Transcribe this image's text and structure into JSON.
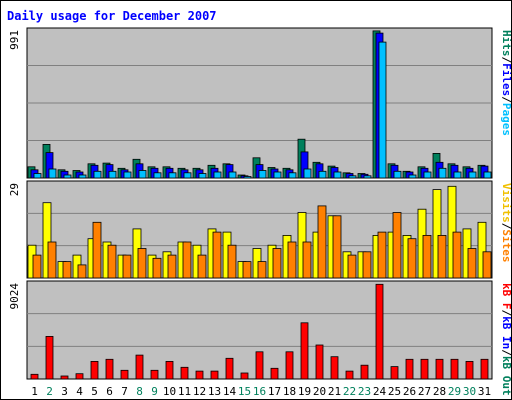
{
  "chart_data": {
    "type": "bar",
    "title": "Daily usage for December 2007",
    "categories": [
      "1",
      "2",
      "3",
      "4",
      "5",
      "6",
      "7",
      "8",
      "9",
      "10",
      "11",
      "12",
      "13",
      "14",
      "15",
      "16",
      "17",
      "18",
      "19",
      "20",
      "21",
      "22",
      "23",
      "24",
      "25",
      "26",
      "27",
      "28",
      "29",
      "30",
      "31"
    ],
    "weekend_days": [
      "2",
      "8",
      "9",
      "15",
      "16",
      "22",
      "23",
      "29",
      "30"
    ],
    "panels": [
      {
        "id": "hits-files-pages",
        "max_label": "991",
        "ylim": [
          0,
          991
        ],
        "right_labels": [
          {
            "text": "Hits",
            "color": "#00805c"
          },
          {
            "text": "/",
            "color": "#000000"
          },
          {
            "text": "Files",
            "color": "#0000ff"
          },
          {
            "text": "/",
            "color": "#000000"
          },
          {
            "text": "Pages",
            "color": "#00c0ff"
          }
        ],
        "series": [
          {
            "name": "Hits",
            "color": "#00805c",
            "values": [
              75,
              225,
              55,
              50,
              95,
              100,
              65,
              125,
              75,
              75,
              65,
              65,
              85,
              95,
              20,
              135,
              70,
              65,
              260,
              105,
              80,
              35,
              30,
              985,
              95,
              45,
              75,
              165,
              95,
              75,
              85
            ]
          },
          {
            "name": "Files",
            "color": "#0000ff",
            "values": [
              55,
              170,
              45,
              40,
              85,
              90,
              55,
              95,
              65,
              65,
              55,
              55,
              65,
              90,
              15,
              90,
              60,
              55,
              175,
              95,
              70,
              30,
              25,
              970,
              85,
              40,
              65,
              105,
              85,
              65,
              80
            ]
          },
          {
            "name": "Pages",
            "color": "#00c0ff",
            "values": [
              30,
              60,
              20,
              20,
              45,
              45,
              40,
              50,
              35,
              35,
              35,
              30,
              40,
              40,
              10,
              50,
              40,
              35,
              60,
              45,
              40,
              15,
              15,
              910,
              45,
              20,
              40,
              65,
              40,
              40,
              40
            ]
          }
        ]
      },
      {
        "id": "visits-sites",
        "max_label": "29",
        "ylim": [
          0,
          29
        ],
        "right_labels": [
          {
            "text": "Visits",
            "color": "#f0c000"
          },
          {
            "text": "/",
            "color": "#000000"
          },
          {
            "text": "Sites",
            "color": "#ff8000"
          }
        ],
        "series": [
          {
            "name": "Visits",
            "color": "#ffff00",
            "values": [
              10,
              23,
              5,
              7,
              12,
              11,
              7,
              15,
              7,
              8,
              11,
              10,
              15,
              14,
              5,
              9,
              10,
              13,
              20,
              14,
              19,
              8,
              8,
              13,
              14,
              13,
              21,
              27,
              28,
              15,
              17
            ]
          },
          {
            "name": "Sites",
            "color": "#ff8000",
            "values": [
              7,
              11,
              5,
              4,
              17,
              10,
              7,
              9,
              6,
              7,
              11,
              7,
              14,
              10,
              5,
              5,
              9,
              11,
              11,
              22,
              19,
              7,
              8,
              14,
              20,
              12,
              13,
              13,
              14,
              9,
              8
            ]
          }
        ]
      },
      {
        "id": "kb",
        "max_label": "9024",
        "ylim": [
          0,
          9024
        ],
        "right_labels": [
          {
            "text": "kB F",
            "color": "#ff0000"
          },
          {
            "text": "/",
            "color": "#000000"
          },
          {
            "text": "kB In",
            "color": "#0000ff"
          },
          {
            "text": "/",
            "color": "#000000"
          },
          {
            "text": "kB Out",
            "color": "#00805c"
          }
        ],
        "series": [
          {
            "name": "kB F",
            "color": "#ff0000",
            "values": [
              440,
              4000,
              280,
              500,
              1650,
              1850,
              820,
              2250,
              820,
              1650,
              1100,
              740,
              740,
              1950,
              560,
              2560,
              1010,
              2560,
              5280,
              3200,
              2100,
              740,
              1300,
              8900,
              1170,
              1850,
              1850,
              1850,
              1850,
              1650,
              1850
            ]
          }
        ]
      }
    ]
  }
}
